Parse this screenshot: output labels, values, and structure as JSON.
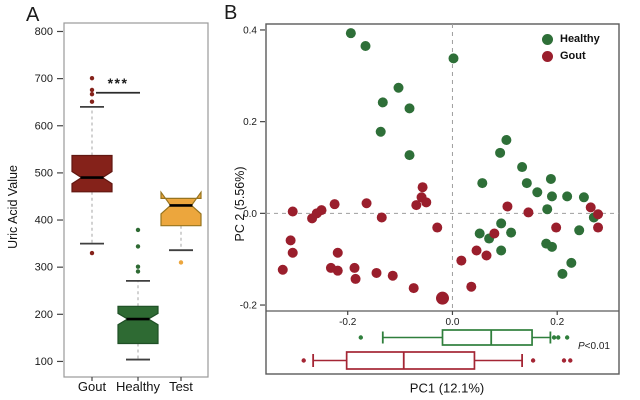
{
  "chart_data": [
    {
      "id": "A",
      "type": "boxplot",
      "ylabel": "Uric Acid Value",
      "yticks": [
        100,
        200,
        300,
        400,
        500,
        600,
        700,
        800
      ],
      "ylim": [
        67,
        818
      ],
      "categories": [
        "Gout",
        "Healthy",
        "Test"
      ],
      "significance": {
        "stars": "***",
        "bar_value": 670,
        "between": [
          "Gout",
          "Healthy"
        ]
      },
      "boxes": [
        {
          "category": "Gout",
          "fill": "#85221A",
          "stroke": "#611711",
          "q1": 460,
          "median": 490,
          "q3": 537,
          "notch_low": 477,
          "notch_high": 503,
          "whisker_low": 350,
          "whisker_high": 640,
          "outliers": [
            701,
            676,
            667,
            651,
            330
          ]
        },
        {
          "category": "Healthy",
          "fill": "#2E6A33",
          "stroke": "#1F4F26",
          "q1": 138,
          "median": 190,
          "q3": 217,
          "notch_low": 178,
          "notch_high": 202,
          "whisker_low": 104,
          "whisker_high": 271,
          "outliers": [
            379,
            344,
            301,
            291
          ]
        },
        {
          "category": "Test",
          "fill": "#ECA63D",
          "stroke": "#97741F",
          "q1": 388,
          "median": 431,
          "q3": 446,
          "notch_low": 413,
          "notch_high": 459,
          "whisker_low": 336,
          "whisker_high": 441,
          "outliers": [
            310
          ]
        }
      ]
    },
    {
      "id": "B",
      "type": "scatter",
      "xlabel": "PC1 (12.1%)",
      "ylabel": "PC 2 (5.56%)",
      "xticks": [
        -0.2,
        0.0,
        0.2
      ],
      "yticks": [
        0.4,
        0.2,
        0.0,
        -0.2
      ],
      "xlim": [
        -0.356,
        0.318
      ],
      "ylim": [
        -0.213,
        0.413
      ],
      "ref_lines": {
        "x": 0.0,
        "y": 0.0
      },
      "legend": [
        {
          "label": "Healthy",
          "color": "#2E6F38"
        },
        {
          "label": "Gout",
          "color": "#9A1E2C"
        }
      ],
      "p_annotation": {
        "prefix": "P",
        "rest": "<0.01"
      },
      "series": [
        {
          "name": "Healthy",
          "color": "#2E6F38",
          "points": [
            [
              -0.194,
              0.393
            ],
            [
              -0.166,
              0.365
            ],
            [
              0.002,
              0.338
            ],
            [
              -0.103,
              0.274
            ],
            [
              -0.133,
              0.242
            ],
            [
              -0.082,
              0.229
            ],
            [
              -0.137,
              0.178
            ],
            [
              -0.082,
              0.127
            ],
            [
              0.103,
              0.16
            ],
            [
              0.091,
              0.132
            ],
            [
              0.133,
              0.101
            ],
            [
              0.057,
              0.066
            ],
            [
              0.142,
              0.066
            ],
            [
              0.188,
              0.075
            ],
            [
              0.162,
              0.046
            ],
            [
              0.19,
              0.037
            ],
            [
              0.219,
              0.037
            ],
            [
              0.251,
              0.035
            ],
            [
              0.181,
              0.009
            ],
            [
              0.27,
              -0.009
            ],
            [
              0.093,
              -0.022
            ],
            [
              0.052,
              -0.044
            ],
            [
              0.112,
              -0.042
            ],
            [
              0.07,
              -0.055
            ],
            [
              0.093,
              -0.081
            ],
            [
              0.179,
              -0.066
            ],
            [
              0.19,
              -0.073
            ],
            [
              0.227,
              -0.108
            ],
            [
              0.21,
              -0.132
            ],
            [
              0.242,
              -0.037
            ]
          ]
        },
        {
          "name": "Gout",
          "color": "#9A1E2C",
          "points": [
            [
              -0.305,
              0.004
            ],
            [
              -0.268,
              -0.011
            ],
            [
              -0.259,
              0.0
            ],
            [
              -0.25,
              0.007
            ],
            [
              -0.225,
              0.02
            ],
            [
              -0.164,
              0.022
            ],
            [
              -0.135,
              -0.009
            ],
            [
              -0.309,
              -0.059
            ],
            [
              -0.305,
              -0.086
            ],
            [
              -0.324,
              -0.123
            ],
            [
              -0.219,
              -0.086
            ],
            [
              -0.232,
              -0.119
            ],
            [
              -0.219,
              -0.125
            ],
            [
              -0.187,
              -0.119
            ],
            [
              -0.185,
              -0.143
            ],
            [
              -0.145,
              -0.13
            ],
            [
              -0.114,
              -0.136
            ],
            [
              -0.074,
              -0.163
            ],
            [
              -0.019,
              -0.185,
              6.5
            ],
            [
              -0.057,
              0.057
            ],
            [
              -0.059,
              0.035
            ],
            [
              -0.05,
              0.024
            ],
            [
              -0.069,
              0.018
            ],
            [
              -0.029,
              -0.031
            ],
            [
              0.105,
              0.015
            ],
            [
              0.145,
              0.002
            ],
            [
              0.264,
              0.013
            ],
            [
              0.278,
              -0.002
            ],
            [
              0.198,
              -0.031
            ],
            [
              0.278,
              -0.031
            ],
            [
              0.08,
              -0.044
            ],
            [
              0.017,
              -0.103
            ],
            [
              0.046,
              -0.081
            ],
            [
              0.065,
              -0.092
            ],
            [
              0.036,
              -0.16
            ]
          ]
        }
      ],
      "marginal_boxplots": [
        {
          "name": "Healthy",
          "color": "#2F7F3C",
          "whisker_low": -0.133,
          "q1": -0.019,
          "median": 0.074,
          "q3": 0.152,
          "whisker_high": 0.187,
          "outliers": [
            -0.175,
            0.194,
            0.202,
            0.219
          ]
        },
        {
          "name": "Gout",
          "color": "#A42534",
          "whisker_low": -0.266,
          "q1": -0.202,
          "median": -0.093,
          "q3": 0.042,
          "whisker_high": 0.133,
          "outliers": [
            -0.284,
            0.154,
            0.213,
            0.225
          ]
        }
      ]
    }
  ]
}
